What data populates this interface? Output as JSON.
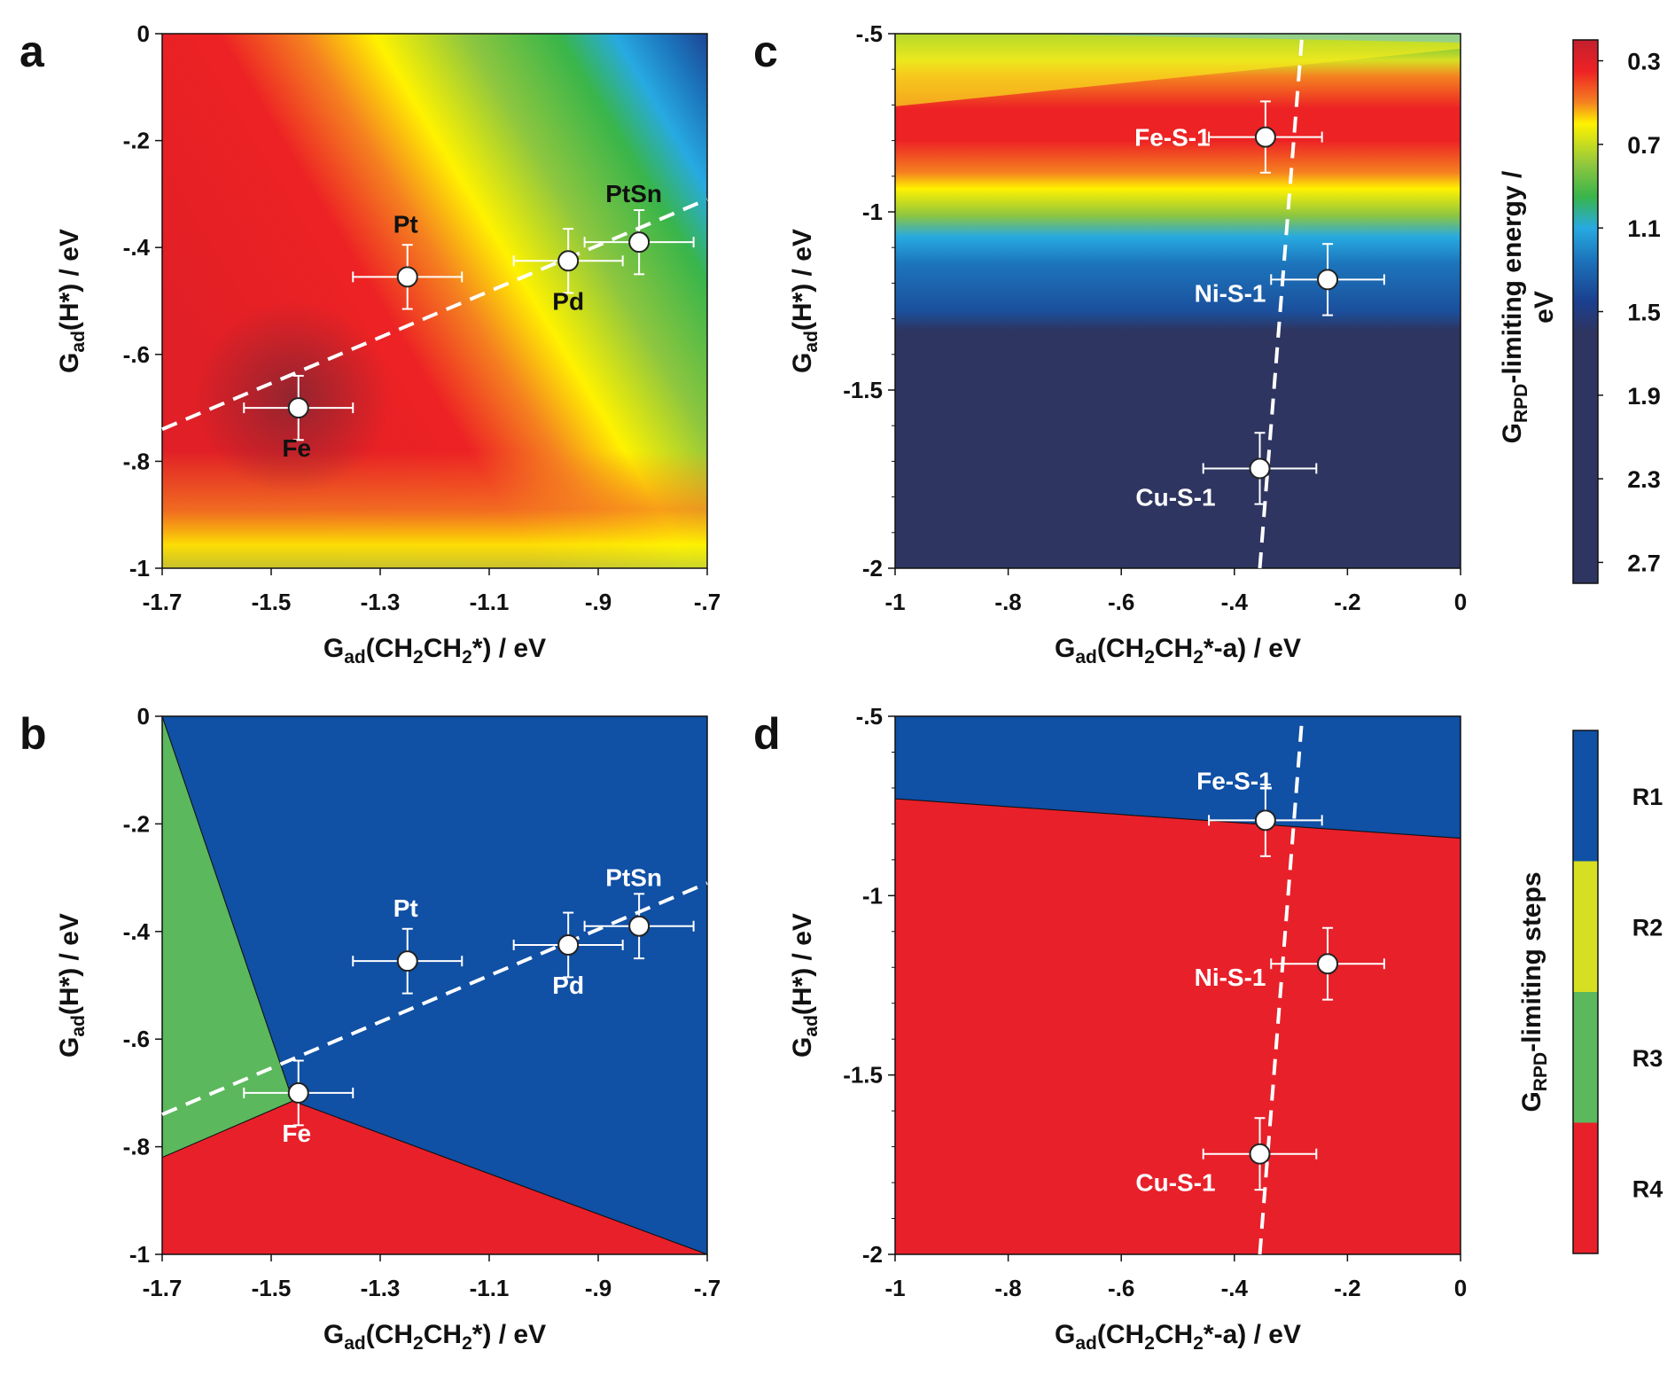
{
  "chart_data": [
    {
      "panel": "a",
      "type": "heatmap",
      "xlabel": "Gad(CH2CH2*) / eV",
      "ylabel": "Gad(H*) / eV",
      "xlim": [
        -1.7,
        -0.7
      ],
      "ylim": [
        -1.0,
        0.0
      ],
      "xticks": [
        -1.7,
        -1.5,
        -1.3,
        -1.1,
        -0.9,
        -0.7
      ],
      "yticks": [
        0,
        -0.2,
        -0.4,
        -0.6,
        -0.8,
        -1
      ],
      "points": [
        {
          "label": "Fe",
          "x": -1.45,
          "y": -0.7,
          "xerr": 0.1,
          "yerr": 0.06
        },
        {
          "label": "Pt",
          "x": -1.25,
          "y": -0.455,
          "xerr": 0.1,
          "yerr": 0.06
        },
        {
          "label": "Pd",
          "x": -0.955,
          "y": -0.425,
          "xerr": 0.1,
          "yerr": 0.06
        },
        {
          "label": "PtSn",
          "x": -0.825,
          "y": -0.39,
          "xerr": 0.1,
          "yerr": 0.06
        }
      ],
      "trendline": {
        "x": [
          -1.7,
          -0.7
        ],
        "y": [
          -0.74,
          -0.31
        ],
        "style": "dashed"
      },
      "colorbar_ref": "energy"
    },
    {
      "panel": "b",
      "type": "heatmap",
      "xlabel": "Gad(CH2CH2*) / eV",
      "ylabel": "Gad(H*) / eV",
      "xlim": [
        -1.7,
        -0.7
      ],
      "ylim": [
        -1.0,
        0.0
      ],
      "xticks": [
        -1.7,
        -1.5,
        -1.3,
        -1.1,
        -0.9,
        -0.7
      ],
      "yticks": [
        0,
        -0.2,
        -0.4,
        -0.6,
        -0.8,
        -1
      ],
      "regions": [
        {
          "step": "R3",
          "polygon": [
            [
              -1.7,
              0.0
            ],
            [
              -1.46,
              -0.715
            ],
            [
              -1.7,
              -0.82
            ]
          ]
        },
        {
          "step": "R4",
          "polygon": [
            [
              -1.7,
              -0.82
            ],
            [
              -1.46,
              -0.715
            ],
            [
              -0.7,
              -1.0
            ],
            [
              -1.7,
              -1.0
            ]
          ]
        },
        {
          "step": "R1",
          "polygon": [
            [
              -1.7,
              0.0
            ],
            [
              -0.7,
              0.0
            ],
            [
              -0.7,
              -1.0
            ],
            [
              -1.46,
              -0.715
            ]
          ]
        }
      ],
      "points": [
        {
          "label": "Fe",
          "x": -1.45,
          "y": -0.7,
          "xerr": 0.1,
          "yerr": 0.06
        },
        {
          "label": "Pt",
          "x": -1.25,
          "y": -0.455,
          "xerr": 0.1,
          "yerr": 0.06
        },
        {
          "label": "Pd",
          "x": -0.955,
          "y": -0.425,
          "xerr": 0.1,
          "yerr": 0.06
        },
        {
          "label": "PtSn",
          "x": -0.825,
          "y": -0.39,
          "xerr": 0.1,
          "yerr": 0.06
        }
      ],
      "trendline": {
        "x": [
          -1.7,
          -0.7
        ],
        "y": [
          -0.74,
          -0.31
        ],
        "style": "dashed"
      },
      "colorbar_ref": "steps"
    },
    {
      "panel": "c",
      "type": "heatmap",
      "xlabel": "Gad(CH2CH2*-a) / eV",
      "ylabel": "Gad(H*) / eV",
      "xlim": [
        -1.0,
        0.0
      ],
      "ylim": [
        -2.0,
        -0.5
      ],
      "xticks": [
        -1,
        -0.8,
        -0.6,
        -0.4,
        -0.2,
        0
      ],
      "yticks": [
        -0.5,
        -1,
        -1.5,
        -2
      ],
      "points": [
        {
          "label": "Fe-S-1",
          "x": -0.345,
          "y": -0.79,
          "xerr": 0.1,
          "yerr": 0.1
        },
        {
          "label": "Ni-S-1",
          "x": -0.235,
          "y": -1.19,
          "xerr": 0.1,
          "yerr": 0.1
        },
        {
          "label": "Cu-S-1",
          "x": -0.355,
          "y": -1.72,
          "xerr": 0.1,
          "yerr": 0.1
        }
      ],
      "trendline": {
        "x": [
          -0.355,
          -0.28
        ],
        "y": [
          -2.0,
          -0.5
        ],
        "style": "dashed"
      },
      "colorbar_ref": "energy"
    },
    {
      "panel": "d",
      "type": "heatmap",
      "xlabel": "Gad(CH2CH2*-a) / eV",
      "ylabel": "Gad(H*) / eV",
      "xlim": [
        -1.0,
        0.0
      ],
      "ylim": [
        -2.0,
        -0.5
      ],
      "xticks": [
        -1,
        -0.8,
        -0.6,
        -0.4,
        -0.2,
        0
      ],
      "yticks": [
        -0.5,
        -1,
        -1.5,
        -2
      ],
      "regions": [
        {
          "step": "R1",
          "polygon": [
            [
              -1.0,
              -0.5
            ],
            [
              0.0,
              -0.5
            ],
            [
              0.0,
              -0.84
            ],
            [
              -1.0,
              -0.73
            ]
          ]
        },
        {
          "step": "R4",
          "polygon": [
            [
              -1.0,
              -0.73
            ],
            [
              0.0,
              -0.84
            ],
            [
              0.0,
              -2.0
            ],
            [
              -1.0,
              -2.0
            ]
          ]
        }
      ],
      "points": [
        {
          "label": "Fe-S-1",
          "x": -0.345,
          "y": -0.79,
          "xerr": 0.1,
          "yerr": 0.1
        },
        {
          "label": "Ni-S-1",
          "x": -0.235,
          "y": -1.19,
          "xerr": 0.1,
          "yerr": 0.1
        },
        {
          "label": "Cu-S-1",
          "x": -0.355,
          "y": -1.72,
          "xerr": 0.1,
          "yerr": 0.1
        }
      ],
      "trendline": {
        "x": [
          -0.355,
          -0.28
        ],
        "y": [
          -2.0,
          -0.5
        ],
        "style": "dashed"
      },
      "colorbar_ref": "steps"
    }
  ],
  "colorbars": {
    "energy": {
      "title": "GRPD-limiting energy / eV",
      "ticks": [
        0.3,
        0.7,
        1.1,
        1.5,
        1.9,
        2.3,
        2.7
      ],
      "stops": [
        {
          "value": 0.2,
          "color": "#c2202e"
        },
        {
          "value": 0.35,
          "color": "#ee2224"
        },
        {
          "value": 0.5,
          "color": "#f58220"
        },
        {
          "value": 0.6,
          "color": "#fff200"
        },
        {
          "value": 0.8,
          "color": "#8dc63f"
        },
        {
          "value": 0.95,
          "color": "#39b54a"
        },
        {
          "value": 1.1,
          "color": "#27aae1"
        },
        {
          "value": 1.25,
          "color": "#1c75bc"
        },
        {
          "value": 1.45,
          "color": "#1b3f8f"
        },
        {
          "value": 1.6,
          "color": "#2e3560"
        },
        {
          "value": 2.8,
          "color": "#2e3560"
        }
      ]
    },
    "steps": {
      "title": "GRPD-limiting steps",
      "items": [
        {
          "label": "R1",
          "color": "#1050a5"
        },
        {
          "label": "R2",
          "color": "#d7df23"
        },
        {
          "label": "R3",
          "color": "#5bb85d"
        },
        {
          "label": "R4",
          "color": "#e8202a"
        }
      ]
    }
  }
}
